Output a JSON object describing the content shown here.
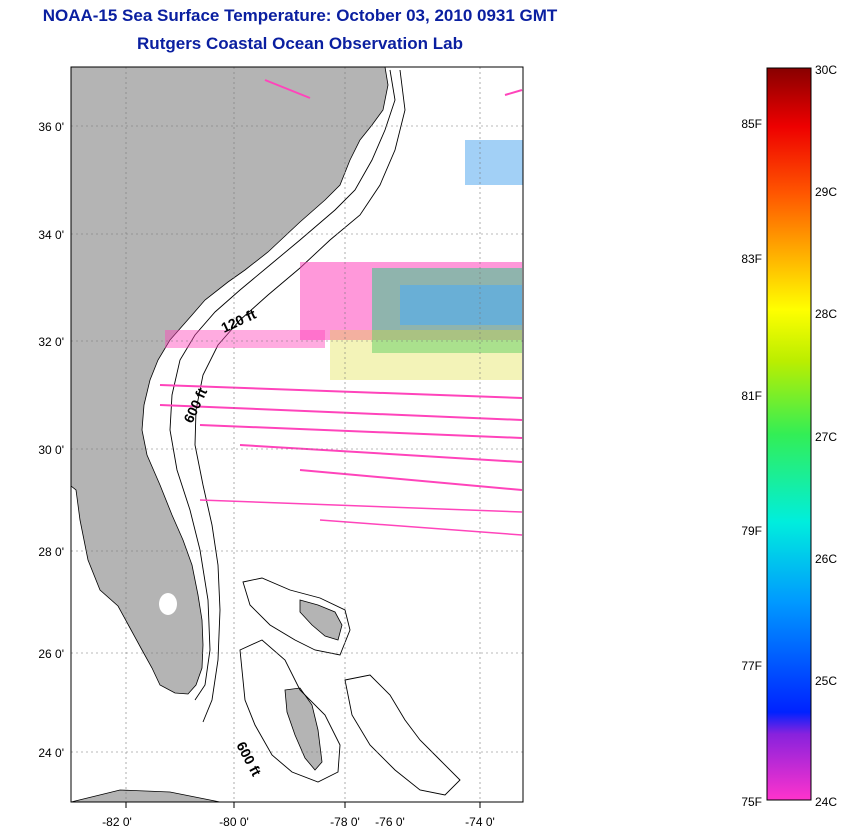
{
  "title": {
    "line1": "NOAA-15 Sea Surface Temperature:  October 03, 2010 0931 GMT",
    "line2": "Rutgers Coastal Ocean Observation Lab"
  },
  "map": {
    "lon_ticks": [
      "-82 0'",
      "-80 0'",
      "-78 0'",
      "-76 0'",
      "-74 0'"
    ],
    "lat_ticks": [
      "36 0'",
      "34 0'",
      "32 0'",
      "30 0'",
      "28 0'",
      "26 0'",
      "24 0'"
    ],
    "contours": [
      "120 ft",
      "600 ft",
      "600 ft"
    ],
    "land_color": "#b4b4b4"
  },
  "colorbar": {
    "celsius": [
      "30C",
      "29C",
      "28C",
      "27C",
      "26C",
      "25C",
      "24C"
    ],
    "fahrenheit": [
      "85F",
      "83F",
      "81F",
      "79F",
      "77F",
      "75F"
    ],
    "gradient": [
      "#ff33cc",
      "#8822dd",
      "#0022ff",
      "#0099ff",
      "#00eedd",
      "#33ee55",
      "#bbee00",
      "#ffff00",
      "#ffaa00",
      "#ff5500",
      "#ee0000",
      "#880000"
    ]
  }
}
